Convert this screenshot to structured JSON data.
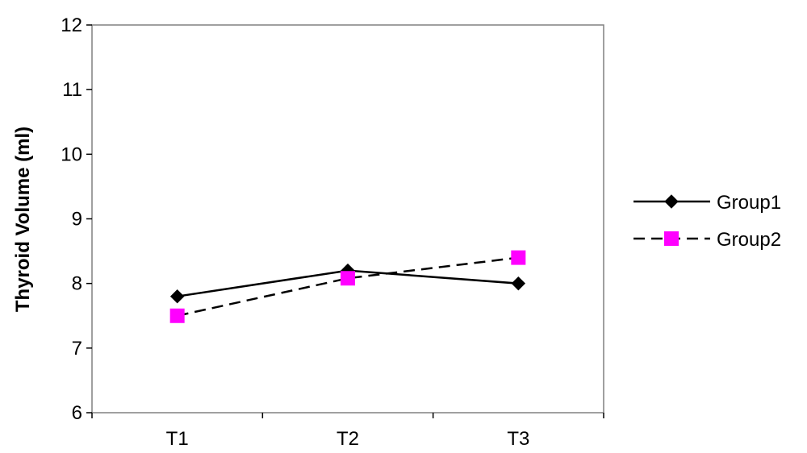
{
  "chart_data": {
    "type": "line",
    "categories": [
      "T1",
      "T2",
      "T3"
    ],
    "series": [
      {
        "name": "Group1",
        "values": [
          7.8,
          8.2,
          8.0
        ],
        "color": "#000000",
        "line": "solid",
        "marker": "diamond"
      },
      {
        "name": "Group2",
        "values": [
          7.5,
          8.08,
          8.4
        ],
        "color": "#ff00ff",
        "line": "dashed",
        "marker": "square"
      }
    ],
    "ylabel": "Thyroid Volume (ml)",
    "xlabel": "",
    "ylim": [
      6,
      12
    ],
    "yticks": [
      "6",
      "7",
      "8",
      "9",
      "10",
      "11",
      "12"
    ],
    "grid": false,
    "legend_position": "right"
  }
}
